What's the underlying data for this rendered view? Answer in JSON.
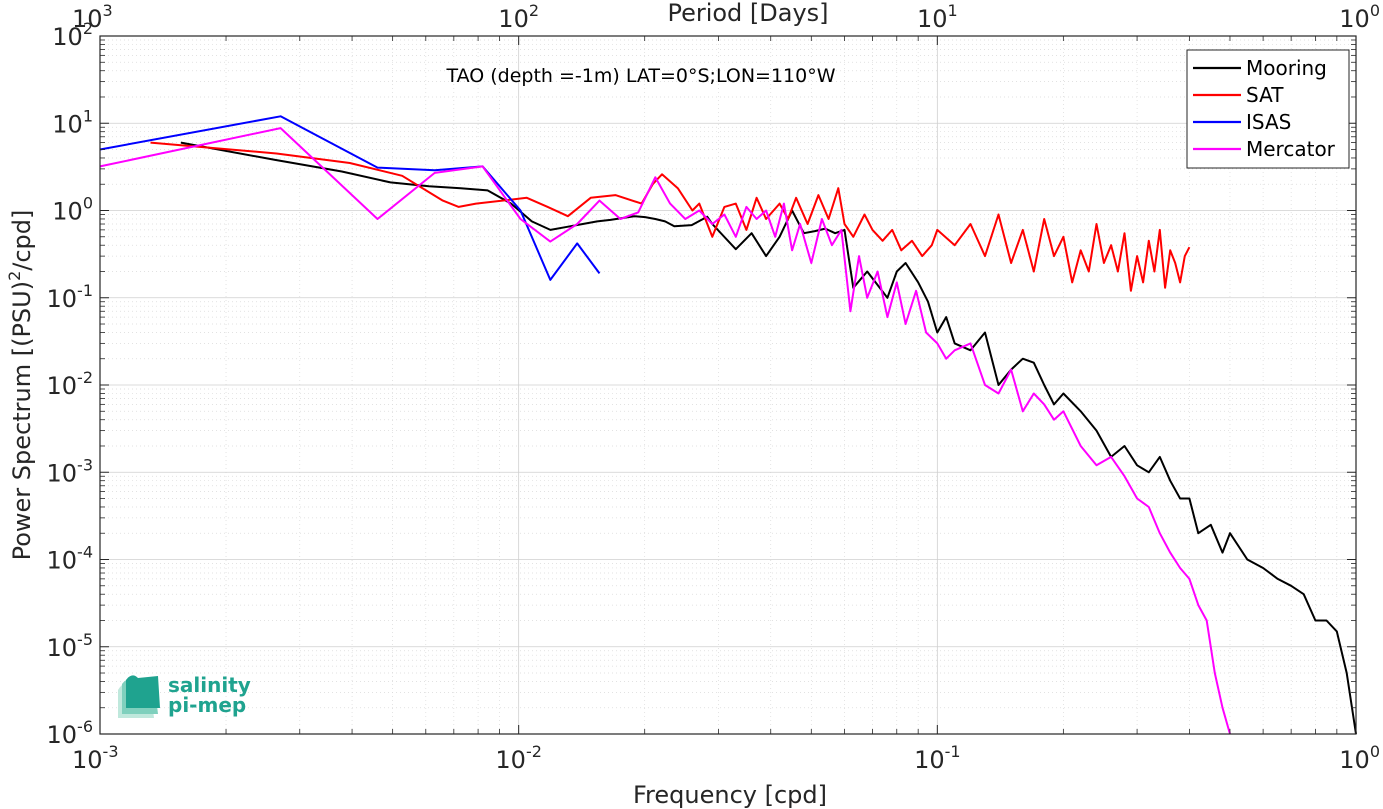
{
  "chart_data": {
    "type": "line",
    "title": "TAO (depth =-1m) LAT=0°S;LON=110°W",
    "xlabel": "Frequency [cpd]",
    "ylabel": "Power Spectrum [(PSU)²/cpd]",
    "ylabel_base": "Power Spectrum [(PSU)",
    "ylabel_exp": "2",
    "ylabel_tail": "/cpd]",
    "top_xlabel": "Period [Days]",
    "xscale": "log",
    "yscale": "log",
    "xlim": [
      0.001,
      1
    ],
    "ylim": [
      1e-06,
      100
    ],
    "grid": true,
    "minor_grid": true,
    "legend_position": "top-right",
    "bottom_ticks": [
      {
        "value": 0.001,
        "base": "10",
        "exp": "-3"
      },
      {
        "value": 0.01,
        "base": "10",
        "exp": "-2"
      },
      {
        "value": 0.1,
        "base": "10",
        "exp": "-1"
      },
      {
        "value": 1,
        "base": "10",
        "exp": "0"
      }
    ],
    "top_ticks": [
      {
        "value": 0.001,
        "base": "10",
        "exp": "3"
      },
      {
        "value": 0.01,
        "base": "10",
        "exp": "2"
      },
      {
        "value": 0.1,
        "base": "10",
        "exp": "1"
      },
      {
        "value": 1,
        "base": "10",
        "exp": "0"
      }
    ],
    "y_ticks": [
      {
        "value": 100,
        "base": "10",
        "exp": "2"
      },
      {
        "value": 10,
        "base": "10",
        "exp": "1"
      },
      {
        "value": 1,
        "base": "10",
        "exp": "0"
      },
      {
        "value": 0.1,
        "base": "10",
        "exp": "-1"
      },
      {
        "value": 0.01,
        "base": "10",
        "exp": "-2"
      },
      {
        "value": 0.001,
        "base": "10",
        "exp": "-3"
      },
      {
        "value": 0.0001,
        "base": "10",
        "exp": "-4"
      },
      {
        "value": 1e-05,
        "base": "10",
        "exp": "-5"
      },
      {
        "value": 1e-06,
        "base": "10",
        "exp": "-6"
      }
    ],
    "series": [
      {
        "name": "Mooring",
        "color": "#000000",
        "x": [
          0.00156,
          0.00262,
          0.00378,
          0.00494,
          0.0061,
          0.00727,
          0.00843,
          0.00959,
          0.01075,
          0.01191,
          0.01307,
          0.01423,
          0.0154,
          0.01656,
          0.01772,
          0.01888,
          0.02004,
          0.0212,
          0.02237,
          0.02353,
          0.0259,
          0.0282,
          0.029,
          0.033,
          0.036,
          0.039,
          0.042,
          0.045,
          0.048,
          0.051,
          0.054,
          0.057,
          0.06,
          0.063,
          0.068,
          0.072,
          0.076,
          0.08,
          0.084,
          0.09,
          0.095,
          0.1,
          0.105,
          0.11,
          0.12,
          0.13,
          0.14,
          0.15,
          0.16,
          0.17,
          0.18,
          0.19,
          0.2,
          0.22,
          0.24,
          0.26,
          0.28,
          0.3,
          0.32,
          0.34,
          0.36,
          0.38,
          0.4,
          0.42,
          0.45,
          0.48,
          0.5,
          0.55,
          0.6,
          0.65,
          0.7,
          0.75,
          0.8,
          0.85,
          0.9,
          0.95,
          1.0
        ],
        "y": [
          6.0,
          3.8,
          2.8,
          2.1,
          1.9,
          1.8,
          1.7,
          1.2,
          0.75,
          0.6,
          0.65,
          0.7,
          0.75,
          0.78,
          0.82,
          0.86,
          0.84,
          0.8,
          0.75,
          0.66,
          0.68,
          0.85,
          0.7,
          0.36,
          0.55,
          0.3,
          0.5,
          1.0,
          0.55,
          0.58,
          0.62,
          0.55,
          0.6,
          0.13,
          0.2,
          0.14,
          0.1,
          0.2,
          0.25,
          0.15,
          0.09,
          0.04,
          0.06,
          0.03,
          0.025,
          0.04,
          0.01,
          0.015,
          0.02,
          0.018,
          0.01,
          0.006,
          0.008,
          0.005,
          0.003,
          0.0015,
          0.002,
          0.0012,
          0.001,
          0.0015,
          0.0008,
          0.0005,
          0.0005,
          0.0002,
          0.00025,
          0.00012,
          0.0002,
          0.0001,
          8e-05,
          6e-05,
          5e-05,
          4e-05,
          2e-05,
          2e-05,
          1.5e-05,
          5e-06,
          1e-06
        ]
      },
      {
        "name": "SAT",
        "color": "#ff0000",
        "x": [
          0.00132,
          0.00264,
          0.00395,
          0.00527,
          0.00659,
          0.00719,
          0.00791,
          0.01046,
          0.01173,
          0.01311,
          0.01486,
          0.01702,
          0.01966,
          0.0209,
          0.022,
          0.024,
          0.026,
          0.027,
          0.029,
          0.031,
          0.033,
          0.035,
          0.037,
          0.039,
          0.042,
          0.044,
          0.046,
          0.049,
          0.052,
          0.055,
          0.058,
          0.06,
          0.063,
          0.067,
          0.07,
          0.074,
          0.078,
          0.082,
          0.087,
          0.092,
          0.097,
          0.1,
          0.11,
          0.12,
          0.13,
          0.14,
          0.15,
          0.16,
          0.17,
          0.18,
          0.19,
          0.2,
          0.21,
          0.22,
          0.23,
          0.24,
          0.25,
          0.26,
          0.27,
          0.28,
          0.29,
          0.3,
          0.31,
          0.32,
          0.33,
          0.34,
          0.35,
          0.36,
          0.37,
          0.38,
          0.39,
          0.4
        ],
        "y": [
          6.0,
          4.5,
          3.5,
          2.5,
          1.3,
          1.1,
          1.2,
          1.4,
          1.1,
          0.86,
          1.4,
          1.5,
          1.2,
          2.0,
          2.6,
          1.8,
          1.0,
          1.2,
          0.5,
          1.1,
          1.2,
          0.6,
          1.4,
          0.8,
          1.2,
          0.8,
          1.4,
          0.7,
          1.5,
          0.8,
          1.8,
          0.7,
          0.5,
          0.9,
          0.6,
          0.45,
          0.6,
          0.35,
          0.45,
          0.3,
          0.4,
          0.6,
          0.4,
          0.7,
          0.3,
          0.9,
          0.25,
          0.6,
          0.2,
          0.8,
          0.3,
          0.5,
          0.15,
          0.35,
          0.2,
          0.7,
          0.25,
          0.4,
          0.2,
          0.55,
          0.12,
          0.3,
          0.15,
          0.45,
          0.2,
          0.6,
          0.13,
          0.35,
          0.25,
          0.15,
          0.3,
          0.38
        ]
      },
      {
        "name": "ISAS",
        "color": "#0000ff",
        "x": [
          0.001,
          0.0027,
          0.0046,
          0.0063,
          0.0082,
          0.0101,
          0.0119,
          0.0138,
          0.0156
        ],
        "y": [
          5.0,
          12.0,
          3.1,
          2.9,
          3.2,
          1.0,
          0.16,
          0.42,
          0.19
        ]
      },
      {
        "name": "Mercator",
        "color": "#ff00ff",
        "x": [
          0.001,
          0.0027,
          0.0046,
          0.0063,
          0.0082,
          0.0101,
          0.0119,
          0.0138,
          0.0156,
          0.0175,
          0.0193,
          0.0212,
          0.023,
          0.025,
          0.027,
          0.029,
          0.031,
          0.033,
          0.035,
          0.037,
          0.039,
          0.041,
          0.043,
          0.045,
          0.047,
          0.05,
          0.053,
          0.056,
          0.059,
          0.062,
          0.065,
          0.068,
          0.072,
          0.076,
          0.08,
          0.084,
          0.089,
          0.094,
          0.1,
          0.105,
          0.11,
          0.12,
          0.13,
          0.14,
          0.15,
          0.16,
          0.17,
          0.18,
          0.19,
          0.2,
          0.22,
          0.24,
          0.26,
          0.28,
          0.3,
          0.32,
          0.34,
          0.36,
          0.38,
          0.4,
          0.42,
          0.44,
          0.46,
          0.48,
          0.5
        ],
        "y": [
          3.2,
          8.8,
          0.8,
          2.7,
          3.2,
          0.8,
          0.44,
          0.7,
          1.3,
          0.8,
          0.95,
          2.4,
          1.2,
          0.8,
          1.0,
          0.7,
          0.9,
          0.5,
          1.1,
          0.8,
          1.0,
          0.5,
          1.2,
          0.35,
          0.7,
          0.25,
          0.8,
          0.4,
          0.6,
          0.07,
          0.3,
          0.1,
          0.2,
          0.06,
          0.15,
          0.05,
          0.12,
          0.04,
          0.03,
          0.02,
          0.025,
          0.03,
          0.01,
          0.008,
          0.015,
          0.005,
          0.008,
          0.006,
          0.004,
          0.005,
          0.002,
          0.0012,
          0.0015,
          0.0009,
          0.0005,
          0.0004,
          0.0002,
          0.00012,
          8e-05,
          6e-05,
          3e-05,
          2e-05,
          5e-06,
          2e-06,
          1e-06
        ]
      }
    ]
  },
  "logo": {
    "line1": "salinity",
    "line2": "pi-mep",
    "color": "#1fa38f"
  }
}
